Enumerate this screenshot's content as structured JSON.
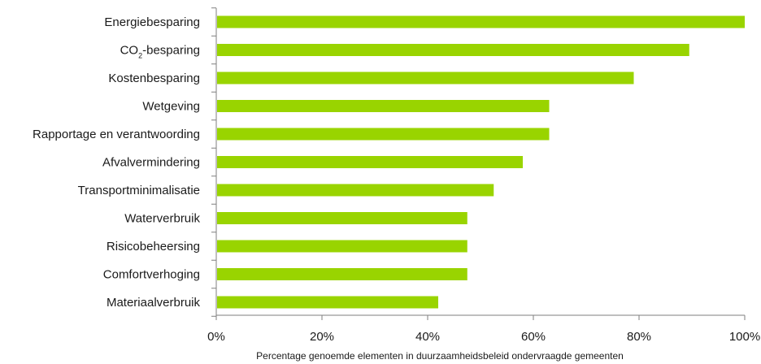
{
  "chart_data": {
    "type": "bar",
    "orientation": "horizontal",
    "categories": [
      "Energiebesparing",
      "CO2-besparing",
      "Kostenbesparing",
      "Wetgeving",
      "Rapportage en verantwoording",
      "Afvalvermindering",
      "Transportminimalisatie",
      "Waterverbruik",
      "Risicobeheersing",
      "Comfortverhoging",
      "Materiaalverbruik"
    ],
    "values": [
      100,
      89.5,
      79,
      63,
      63,
      58,
      52.5,
      47.5,
      47.5,
      47.5,
      42
    ],
    "xlabel": "Percentage genoemde elementen in duurzaamheidsbeleid ondervraagde gemeenten",
    "ylabel": "",
    "xlim": [
      0,
      100
    ],
    "ticks": [
      "0%",
      "20%",
      "40%",
      "60%",
      "80%",
      "100%"
    ],
    "tick_values": [
      0,
      20,
      40,
      60,
      80,
      100
    ],
    "grid": false,
    "legend": "none",
    "bar_color": "#99d400"
  }
}
